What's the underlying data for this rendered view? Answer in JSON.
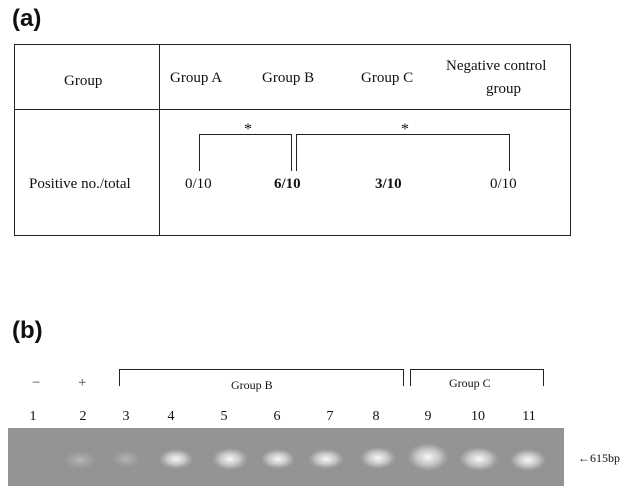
{
  "panel_a": {
    "label": "(a)",
    "header_group": "Group",
    "columns": [
      "Group A",
      "Group B",
      "Group C"
    ],
    "neg_ctrl_line1": "Negative control",
    "neg_ctrl_line2": "group",
    "row_label": "Positive no./total",
    "values": [
      "0/10",
      "6/10",
      "3/10",
      "0/10"
    ],
    "significance": [
      "*",
      "*"
    ]
  },
  "panel_b": {
    "label": "(b)",
    "neg_sign": "−",
    "pos_sign": "+",
    "group_b": "Group B",
    "group_c": "Group C",
    "lanes": [
      "1",
      "2",
      "3",
      "4",
      "5",
      "6",
      "7",
      "8",
      "9",
      "10",
      "11"
    ],
    "band_marker": "←615bp"
  }
}
